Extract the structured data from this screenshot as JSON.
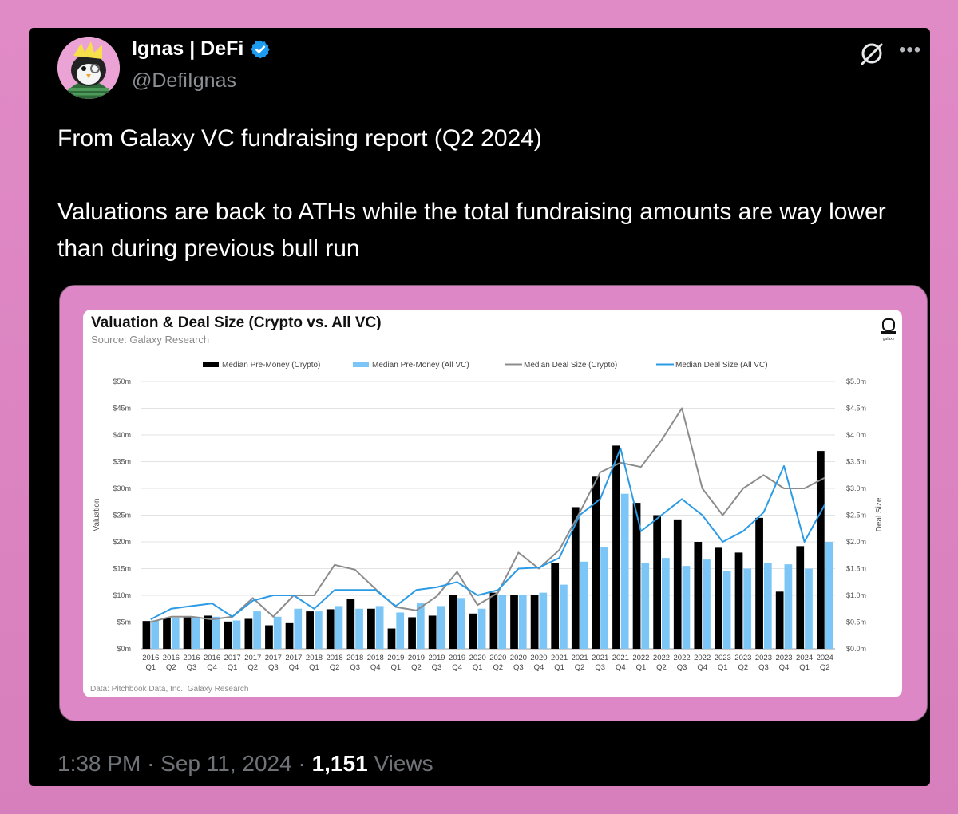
{
  "tweet": {
    "author_name": "Ignas | DeFi",
    "handle": "@DefiIgnas",
    "text_line1": "From Galaxy VC fundraising report (Q2 2024)",
    "text_line2": "Valuations are back to ATHs while the total fundraising amounts are way lower than during previous bull run",
    "time": "1:38 PM",
    "date": "Sep 11, 2024",
    "views_count": "1,151",
    "views_label": "Views",
    "sep": "·"
  },
  "icons": {
    "verified": "verified-badge-icon",
    "grok": "grok-icon",
    "more": "more-options-icon"
  },
  "colors": {
    "crypto_bar": "#000000",
    "allvc_bar": "#7cc6f7",
    "deal_crypto": "#8c8c8c",
    "deal_allvc": "#2b9be6"
  },
  "chart_data": {
    "type": "bar",
    "title": "Valuation & Deal Size (Crypto vs. All VC)",
    "subtitle": "Source: Galaxy Research",
    "logo_text": "galaxy",
    "footer": "Data: Pitchbook Data, Inc., Galaxy Research",
    "ylabel": "Valuation",
    "y2label": "Deal Size",
    "ylim": [
      0,
      50
    ],
    "y2lim": [
      0,
      5
    ],
    "yticks": [
      "$0m",
      "$5m",
      "$10m",
      "$15m",
      "$20m",
      "$25m",
      "$30m",
      "$35m",
      "$40m",
      "$45m",
      "$50m"
    ],
    "y2ticks": [
      "$0.0m",
      "$0.5m",
      "$1.0m",
      "$1.5m",
      "$2.0m",
      "$2.5m",
      "$3.0m",
      "$3.5m",
      "$4.0m",
      "$4.5m",
      "$5.0m"
    ],
    "years": [
      "2016",
      "2016",
      "2016",
      "2016",
      "2017",
      "2017",
      "2017",
      "2017",
      "2018",
      "2018",
      "2018",
      "2018",
      "2019",
      "2019",
      "2019",
      "2019",
      "2020",
      "2020",
      "2020",
      "2020",
      "2021",
      "2021",
      "2021",
      "2021",
      "2022",
      "2022",
      "2022",
      "2022",
      "2023",
      "2023",
      "2023",
      "2023",
      "2024",
      "2024"
    ],
    "quarters": [
      "Q1",
      "Q2",
      "Q3",
      "Q4",
      "Q1",
      "Q2",
      "Q3",
      "Q4",
      "Q1",
      "Q2",
      "Q3",
      "Q4",
      "Q1",
      "Q2",
      "Q3",
      "Q4",
      "Q1",
      "Q2",
      "Q3",
      "Q4",
      "Q1",
      "Q2",
      "Q3",
      "Q4",
      "Q1",
      "Q2",
      "Q3",
      "Q4",
      "Q1",
      "Q2",
      "Q3",
      "Q4",
      "Q1",
      "Q2"
    ],
    "legend": [
      "Median Pre-Money (Crypto)",
      "Median Pre-Money (All VC)",
      "Median Deal Size (Crypto)",
      "Median Deal Size (All VC)"
    ],
    "series": [
      {
        "name": "Median Pre-Money (Crypto)",
        "kind": "bar",
        "axis": "left",
        "values": [
          5.2,
          5.8,
          6.0,
          6.2,
          5.1,
          5.6,
          4.4,
          4.8,
          7.0,
          7.4,
          9.3,
          7.5,
          3.8,
          5.9,
          6.2,
          10.0,
          6.6,
          10.5,
          10.0,
          10.0,
          16.0,
          26.5,
          32.2,
          38.0,
          27.3,
          25.0,
          24.2,
          20.0,
          18.9,
          18.0,
          24.5,
          10.7,
          19.2,
          37.0
        ]
      },
      {
        "name": "Median Pre-Money (All VC)",
        "kind": "bar",
        "axis": "left",
        "values": [
          5.3,
          5.7,
          6.0,
          6.0,
          5.3,
          7.0,
          6.0,
          7.5,
          7.0,
          8.0,
          7.5,
          8.0,
          6.8,
          8.5,
          8.0,
          9.5,
          7.5,
          10.0,
          10.0,
          10.5,
          12.0,
          16.3,
          19.0,
          29.0,
          16.0,
          17.0,
          15.5,
          16.7,
          14.5,
          15.0,
          16.0,
          15.8,
          15.0,
          20.0
        ]
      },
      {
        "name": "Median Deal Size (Crypto)",
        "kind": "line",
        "axis": "right",
        "values": [
          0.5,
          0.6,
          0.6,
          0.55,
          0.6,
          0.95,
          0.6,
          1.0,
          1.0,
          1.57,
          1.48,
          1.12,
          0.78,
          0.72,
          0.98,
          1.44,
          0.82,
          1.05,
          1.8,
          1.5,
          1.85,
          2.55,
          3.3,
          3.48,
          3.4,
          3.9,
          4.5,
          3.0,
          2.5,
          3.0,
          3.25,
          3.0,
          3.0,
          3.2
        ]
      },
      {
        "name": "Median Deal Size (All VC)",
        "kind": "line",
        "axis": "right",
        "values": [
          0.55,
          0.75,
          0.8,
          0.85,
          0.6,
          0.9,
          1.0,
          1.0,
          0.75,
          1.1,
          1.1,
          1.1,
          0.8,
          1.1,
          1.15,
          1.25,
          1.0,
          1.1,
          1.5,
          1.52,
          1.7,
          2.5,
          2.8,
          3.75,
          2.2,
          2.5,
          2.8,
          2.5,
          2.0,
          2.2,
          2.55,
          3.42,
          2.0,
          2.7
        ]
      }
    ]
  }
}
